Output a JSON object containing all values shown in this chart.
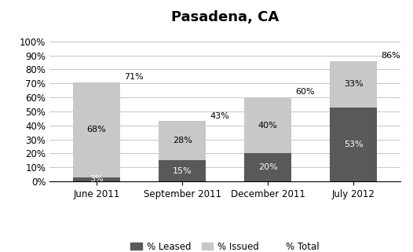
{
  "title": "Pasadena, CA",
  "categories": [
    "June 2011",
    "September 2011",
    "December 2011",
    "July 2012"
  ],
  "leased": [
    3,
    15,
    20,
    53
  ],
  "issued": [
    68,
    28,
    40,
    33
  ],
  "total_labels": [
    71,
    43,
    60,
    86
  ],
  "leased_labels": [
    "3%",
    "15%",
    "20%",
    "53%"
  ],
  "issued_labels": [
    "68%",
    "28%",
    "40%",
    "33%"
  ],
  "total_label_strs": [
    "71%",
    "43%",
    "60%",
    "86%"
  ],
  "color_leased": "#595959",
  "color_issued": "#c8c8c8",
  "yticks": [
    0,
    10,
    20,
    30,
    40,
    50,
    60,
    70,
    80,
    90,
    100
  ],
  "ytick_labels": [
    "0%",
    "10%",
    "20%",
    "30%",
    "40%",
    "50%",
    "60%",
    "70%",
    "80%",
    "90%",
    "100%"
  ],
  "ylim": [
    0,
    108
  ],
  "legend_labels": [
    "% Leased",
    "% Issued",
    "% Total"
  ],
  "title_fontsize": 13,
  "label_fontsize": 8,
  "axis_fontsize": 8.5,
  "legend_fontsize": 8.5,
  "bar_width": 0.55
}
